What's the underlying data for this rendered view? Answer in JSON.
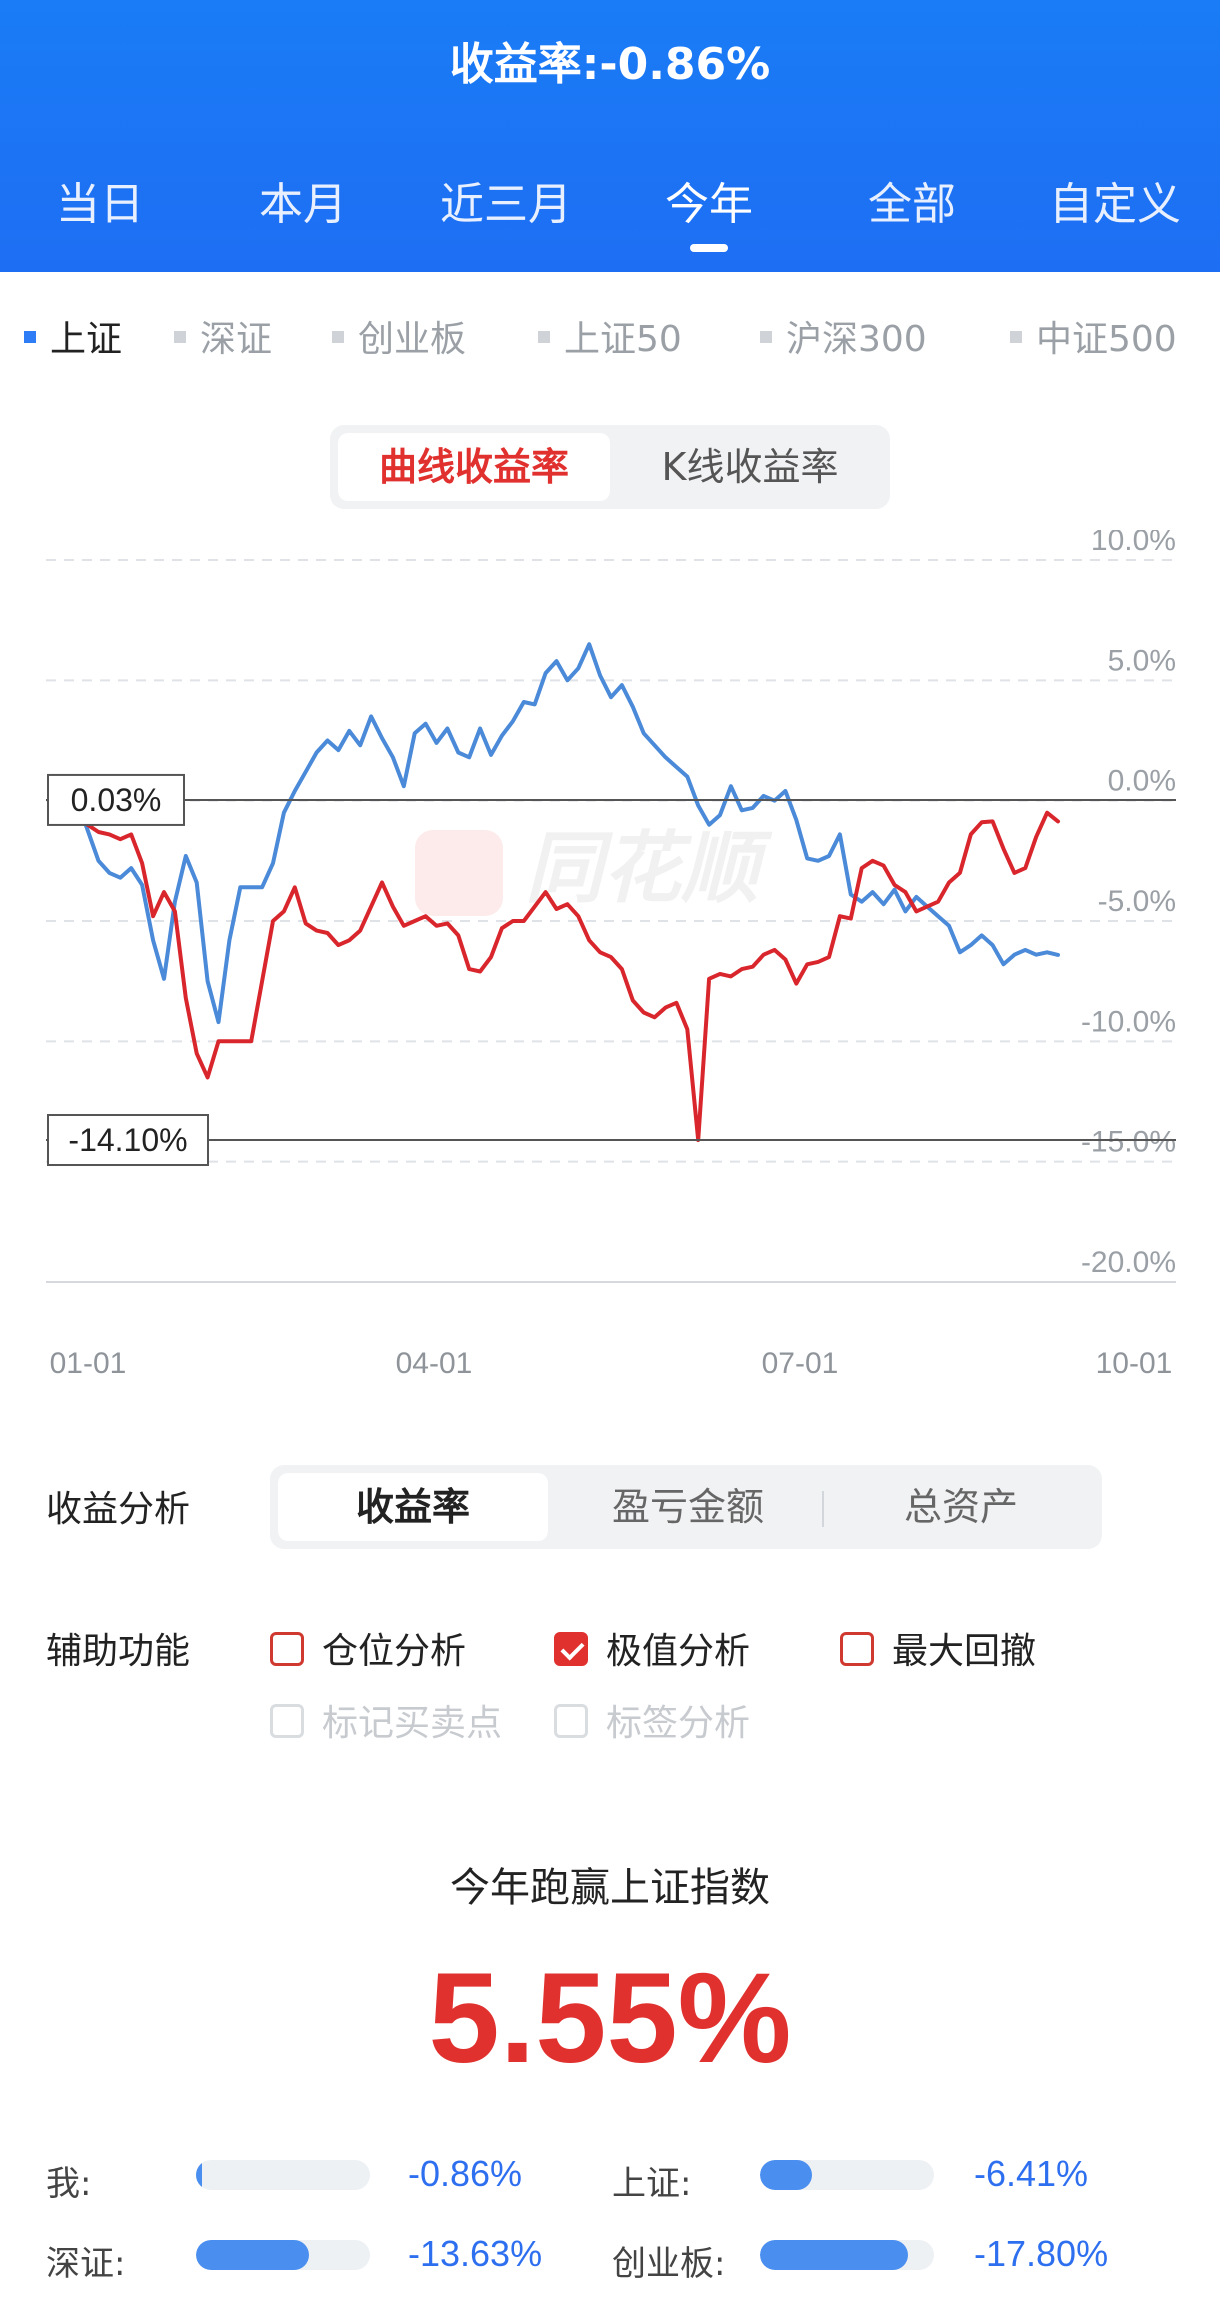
{
  "header": {
    "title": "收益率:-0.86%",
    "periods": [
      "当日",
      "本月",
      "近三月",
      "今年",
      "全部",
      "自定义"
    ],
    "active_period": "今年"
  },
  "indices": {
    "items": [
      "上证",
      "深证",
      "创业板",
      "上证50",
      "沪深300",
      "中证500"
    ],
    "active": "上证"
  },
  "chart_toggle": {
    "options": [
      "曲线收益率",
      "K线收益率"
    ],
    "active": "曲线收益率"
  },
  "chart_data": {
    "type": "line",
    "y_axis_labels": [
      "10.0%",
      "5.0%",
      "0.0%",
      "-5.0%",
      "-10.0%",
      "-15.0%",
      "-20.0%"
    ],
    "x_axis_labels": [
      "01-01",
      "04-01",
      "07-01",
      "10-01"
    ],
    "ylim": [
      -20,
      10
    ],
    "grid": true,
    "annotations": [
      {
        "text": "0.03%",
        "value": 0.03
      },
      {
        "text": "-14.10%",
        "value": -14.1
      }
    ],
    "watermark": "同花顺",
    "colors": {
      "mine": "#d9262c",
      "index": "#4a8ad8"
    },
    "series": [
      {
        "key": "index",
        "x_day": [
          0,
          4,
          7,
          10,
          13,
          16,
          19,
          22,
          25,
          28,
          31,
          34,
          37,
          40,
          43,
          46,
          49,
          52,
          55,
          58,
          61,
          64,
          67,
          70,
          73,
          76,
          79,
          82,
          85,
          88,
          91,
          94,
          97,
          100,
          103,
          106,
          109,
          112,
          115,
          118,
          121,
          124,
          127,
          130,
          133,
          136,
          139,
          142,
          145,
          148,
          151,
          154,
          157,
          160,
          163,
          166,
          169,
          172,
          175,
          178,
          181,
          184,
          187,
          190,
          193,
          196,
          199,
          202,
          205,
          208,
          211,
          214,
          217,
          220,
          223,
          226,
          229,
          232,
          235,
          238,
          241,
          244,
          247,
          250,
          253,
          256,
          259,
          262,
          265,
          268
        ],
        "y": [
          -0.8,
          -2.5,
          -3.0,
          -3.2,
          -2.8,
          -3.5,
          -5.8,
          -7.4,
          -4.2,
          -2.3,
          -3.4,
          -7.5,
          -9.2,
          -5.8,
          -3.6,
          -3.6,
          -3.6,
          -2.6,
          -0.5,
          0.4,
          1.2,
          2.0,
          2.5,
          2.1,
          2.9,
          2.3,
          3.5,
          2.6,
          1.8,
          0.6,
          2.8,
          3.2,
          2.4,
          3.0,
          2.0,
          1.8,
          3.0,
          1.9,
          2.7,
          3.3,
          4.1,
          4.0,
          5.3,
          5.8,
          5.0,
          5.5,
          6.5,
          5.2,
          4.3,
          4.8,
          3.9,
          2.8,
          2.3,
          1.8,
          1.4,
          1.0,
          -0.2,
          -1.0,
          -0.6,
          0.6,
          -0.4,
          -0.3,
          0.2,
          0.0,
          0.4,
          -0.8,
          -2.4,
          -2.5,
          -2.3,
          -1.4,
          -3.9,
          -4.2,
          -3.8,
          -4.3,
          -3.7,
          -4.6,
          -4.0,
          -4.4,
          -4.8,
          -5.2,
          -6.3,
          -6.0,
          -5.6,
          -6.0,
          -6.8,
          -6.4,
          -6.2,
          -6.4,
          -6.3,
          -6.41
        ]
      },
      {
        "key": "mine",
        "x_day": [
          0,
          4,
          7,
          10,
          13,
          16,
          19,
          22,
          25,
          28,
          31,
          34,
          37,
          40,
          43,
          46,
          49,
          52,
          55,
          58,
          61,
          64,
          67,
          70,
          73,
          76,
          79,
          82,
          85,
          88,
          91,
          94,
          97,
          100,
          103,
          106,
          109,
          112,
          115,
          118,
          121,
          124,
          127,
          130,
          133,
          136,
          139,
          142,
          145,
          148,
          151,
          154,
          157,
          160,
          163,
          166,
          169,
          172,
          175,
          178,
          181,
          184,
          187,
          190,
          193,
          196,
          199,
          202,
          205,
          208,
          211,
          214,
          217,
          220,
          223,
          226,
          229,
          232,
          235,
          238,
          241,
          244,
          247,
          250,
          253,
          256,
          259,
          262,
          265,
          268
        ],
        "y": [
          -0.9,
          -1.3,
          -1.4,
          -1.6,
          -1.4,
          -2.6,
          -4.8,
          -3.8,
          -4.6,
          -8.2,
          -10.5,
          -11.5,
          -10.0,
          -10.0,
          -10.0,
          -10.0,
          -7.5,
          -5.0,
          -4.6,
          -3.6,
          -5.1,
          -5.4,
          -5.5,
          -6.0,
          -5.8,
          -5.4,
          -4.4,
          -3.4,
          -4.4,
          -5.2,
          -5.0,
          -4.8,
          -5.2,
          -5.1,
          -5.6,
          -7.0,
          -7.1,
          -6.5,
          -5.3,
          -5.0,
          -5.0,
          -4.4,
          -3.8,
          -4.5,
          -4.3,
          -4.8,
          -5.8,
          -6.3,
          -6.5,
          -7.0,
          -8.3,
          -8.8,
          -9.0,
          -8.6,
          -8.4,
          -9.5,
          -14.1,
          -7.4,
          -7.2,
          -7.3,
          -7.0,
          -6.9,
          -6.4,
          -6.2,
          -6.6,
          -7.6,
          -6.8,
          -6.7,
          -6.5,
          -4.8,
          -4.9,
          -2.8,
          -2.5,
          -2.7,
          -3.5,
          -3.8,
          -4.6,
          -4.4,
          -4.2,
          -3.4,
          -3.0,
          -1.4,
          -0.9,
          -0.86,
          -2.0,
          -3.0,
          -2.8,
          -1.5,
          -0.5,
          -0.86
        ]
      }
    ]
  },
  "analysis": {
    "label": "收益分析",
    "options": [
      "收益率",
      "盈亏金额",
      "总资产"
    ],
    "active": "收益率"
  },
  "aux": {
    "label": "辅助功能",
    "items": [
      {
        "label": "仓位分析",
        "checked": false,
        "enabled": true
      },
      {
        "label": "极值分析",
        "checked": true,
        "enabled": true
      },
      {
        "label": "最大回撤",
        "checked": false,
        "enabled": true
      },
      {
        "label": "标记买卖点",
        "checked": false,
        "enabled": false
      },
      {
        "label": "标签分析",
        "checked": false,
        "enabled": false
      }
    ]
  },
  "summary": {
    "title": "今年跑赢上证指数",
    "value": "5.55%"
  },
  "comparison": [
    {
      "label": "我:",
      "value": "-0.86%",
      "fill": 0.03
    },
    {
      "label": "上证:",
      "value": "-6.41%",
      "fill": 0.3
    },
    {
      "label": "深证:",
      "value": "-13.63%",
      "fill": 0.65
    },
    {
      "label": "创业板:",
      "value": "-17.80%",
      "fill": 0.85
    }
  ]
}
